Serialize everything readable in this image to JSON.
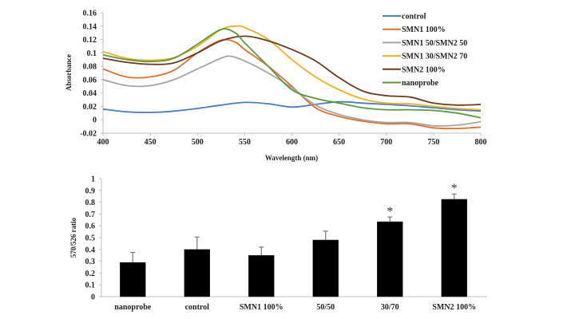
{
  "chart_data": [
    {
      "type": "line",
      "title": "",
      "xlabel": "Wavelength (nm)",
      "ylabel": "Absorbance",
      "xlim": [
        400,
        800
      ],
      "ylim": [
        -0.02,
        0.16
      ],
      "xticks": [
        400,
        450,
        500,
        550,
        600,
        650,
        700,
        750,
        800
      ],
      "yticks": [
        -0.02,
        0,
        0.02,
        0.04,
        0.06,
        0.08,
        0.1,
        0.12,
        0.14,
        0.16
      ],
      "ytick_labels": [
        "-0.02",
        "0",
        "0.02",
        "0.04",
        "0.06",
        "0.08",
        "0.1",
        "0.12",
        "0.14",
        "0.16"
      ],
      "grid": false,
      "legend_position": "top-right",
      "series": [
        {
          "name": "control",
          "color": "#4a7ebb",
          "x": [
            400,
            425,
            450,
            475,
            500,
            525,
            550,
            575,
            600,
            625,
            650,
            675,
            700,
            725,
            750,
            775,
            800
          ],
          "y": [
            0.016,
            0.012,
            0.011,
            0.013,
            0.017,
            0.022,
            0.026,
            0.024,
            0.019,
            0.023,
            0.027,
            0.025,
            0.023,
            0.021,
            0.018,
            0.015,
            0.013
          ]
        },
        {
          "name": "SMN1 100%",
          "color": "#e0702a",
          "x": [
            400,
            425,
            450,
            475,
            500,
            525,
            540,
            550,
            575,
            600,
            625,
            650,
            675,
            700,
            725,
            750,
            775,
            800
          ],
          "y": [
            0.076,
            0.064,
            0.064,
            0.074,
            0.1,
            0.119,
            0.116,
            0.105,
            0.08,
            0.05,
            0.018,
            0.005,
            -0.002,
            -0.006,
            -0.006,
            -0.012,
            -0.013,
            -0.011
          ]
        },
        {
          "name": "SMN1 50/SMN2 50",
          "color": "#a5a5a5",
          "x": [
            400,
            425,
            450,
            475,
            500,
            525,
            535,
            550,
            575,
            600,
            625,
            650,
            675,
            700,
            725,
            750,
            775,
            800
          ],
          "y": [
            0.06,
            0.051,
            0.051,
            0.06,
            0.076,
            0.092,
            0.095,
            0.088,
            0.07,
            0.048,
            0.022,
            0.008,
            0.0,
            -0.004,
            -0.004,
            -0.009,
            -0.008,
            -0.003
          ]
        },
        {
          "name": "SMN1 30/SMN2 70",
          "color": "#f0b022",
          "x": [
            400,
            425,
            450,
            475,
            500,
            525,
            540,
            550,
            575,
            600,
            625,
            650,
            675,
            700,
            725,
            750,
            775,
            800
          ],
          "y": [
            0.102,
            0.092,
            0.089,
            0.093,
            0.11,
            0.135,
            0.14,
            0.138,
            0.12,
            0.09,
            0.064,
            0.045,
            0.031,
            0.025,
            0.024,
            0.02,
            0.017,
            0.015
          ]
        },
        {
          "name": "SMN2 100%",
          "color": "#6b3a1f",
          "x": [
            400,
            425,
            450,
            475,
            500,
            525,
            550,
            575,
            600,
            625,
            650,
            675,
            700,
            725,
            750,
            775,
            800
          ],
          "y": [
            0.092,
            0.086,
            0.083,
            0.085,
            0.1,
            0.118,
            0.125,
            0.118,
            0.105,
            0.088,
            0.063,
            0.043,
            0.036,
            0.034,
            0.025,
            0.022,
            0.023
          ]
        },
        {
          "name": "nanoprobe",
          "color": "#5a9a3a",
          "x": [
            400,
            425,
            450,
            475,
            500,
            525,
            540,
            550,
            575,
            600,
            625,
            650,
            675,
            700,
            725,
            750,
            775,
            800
          ],
          "y": [
            0.097,
            0.09,
            0.087,
            0.092,
            0.113,
            0.135,
            0.13,
            0.115,
            0.08,
            0.045,
            0.032,
            0.025,
            0.018,
            0.015,
            0.015,
            0.014,
            0.01,
            0.003
          ]
        }
      ]
    },
    {
      "type": "bar",
      "title": "",
      "xlabel": "",
      "ylabel": "570/526 ratio",
      "ylim": [
        0,
        1
      ],
      "yticks": [
        0,
        0.1,
        0.2,
        0.3,
        0.4,
        0.5,
        0.6,
        0.7,
        0.8,
        0.9,
        1
      ],
      "ytick_labels": [
        "0",
        "0.1",
        "0.2",
        "0.3",
        "0.4",
        "0.5",
        "0.6",
        "0.7",
        "0.8",
        "0.9",
        "1"
      ],
      "grid": false,
      "bar_color": "#000000",
      "categories": [
        "nanoprobe",
        "control",
        "SMN1 100%",
        "50/50",
        "30/70",
        "SMN2 100%"
      ],
      "values": [
        0.29,
        0.4,
        0.35,
        0.48,
        0.635,
        0.825
      ],
      "error_upper": [
        0.085,
        0.105,
        0.07,
        0.075,
        0.04,
        0.045
      ],
      "annotations": [
        "",
        "",
        "",
        "",
        "*",
        "*"
      ]
    }
  ]
}
